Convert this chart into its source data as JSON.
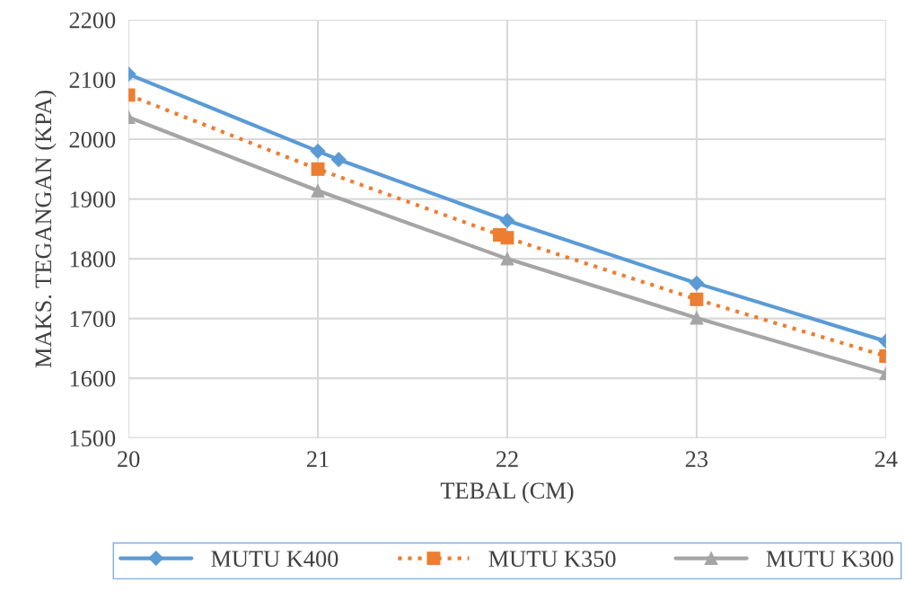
{
  "chart_data": {
    "type": "line",
    "xlabel": "TEBAL (CM)",
    "ylabel": "MAKS. TEGANGAN (KPA)",
    "xlim": [
      20,
      24
    ],
    "xticks": [
      20,
      21,
      22,
      23,
      24
    ],
    "ylim": [
      1500,
      2200
    ],
    "yticks": [
      1500,
      1600,
      1700,
      1800,
      1900,
      2000,
      2100,
      2200
    ],
    "grid": true,
    "legend": "bottom",
    "series": [
      {
        "name": "MUTU K400",
        "color": "#5b9bd5",
        "marker": "diamond",
        "line_style": "solid",
        "x": [
          20,
          21,
          21.11,
          22,
          23,
          24
        ],
        "values": [
          2109,
          1980,
          1966,
          1864,
          1759,
          1662
        ]
      },
      {
        "name": "MUTU K350",
        "color": "#ed7d31",
        "marker": "square",
        "line_style": "dotted",
        "x": [
          20,
          21,
          21.96,
          22,
          23,
          24
        ],
        "values": [
          2074,
          1950,
          1840,
          1835,
          1732,
          1637
        ]
      },
      {
        "name": "MUTU K300",
        "color": "#a5a5a5",
        "marker": "triangle",
        "line_style": "solid",
        "x": [
          20,
          21,
          22,
          23,
          24
        ],
        "values": [
          2037,
          1914,
          1800,
          1701,
          1608
        ]
      }
    ]
  }
}
